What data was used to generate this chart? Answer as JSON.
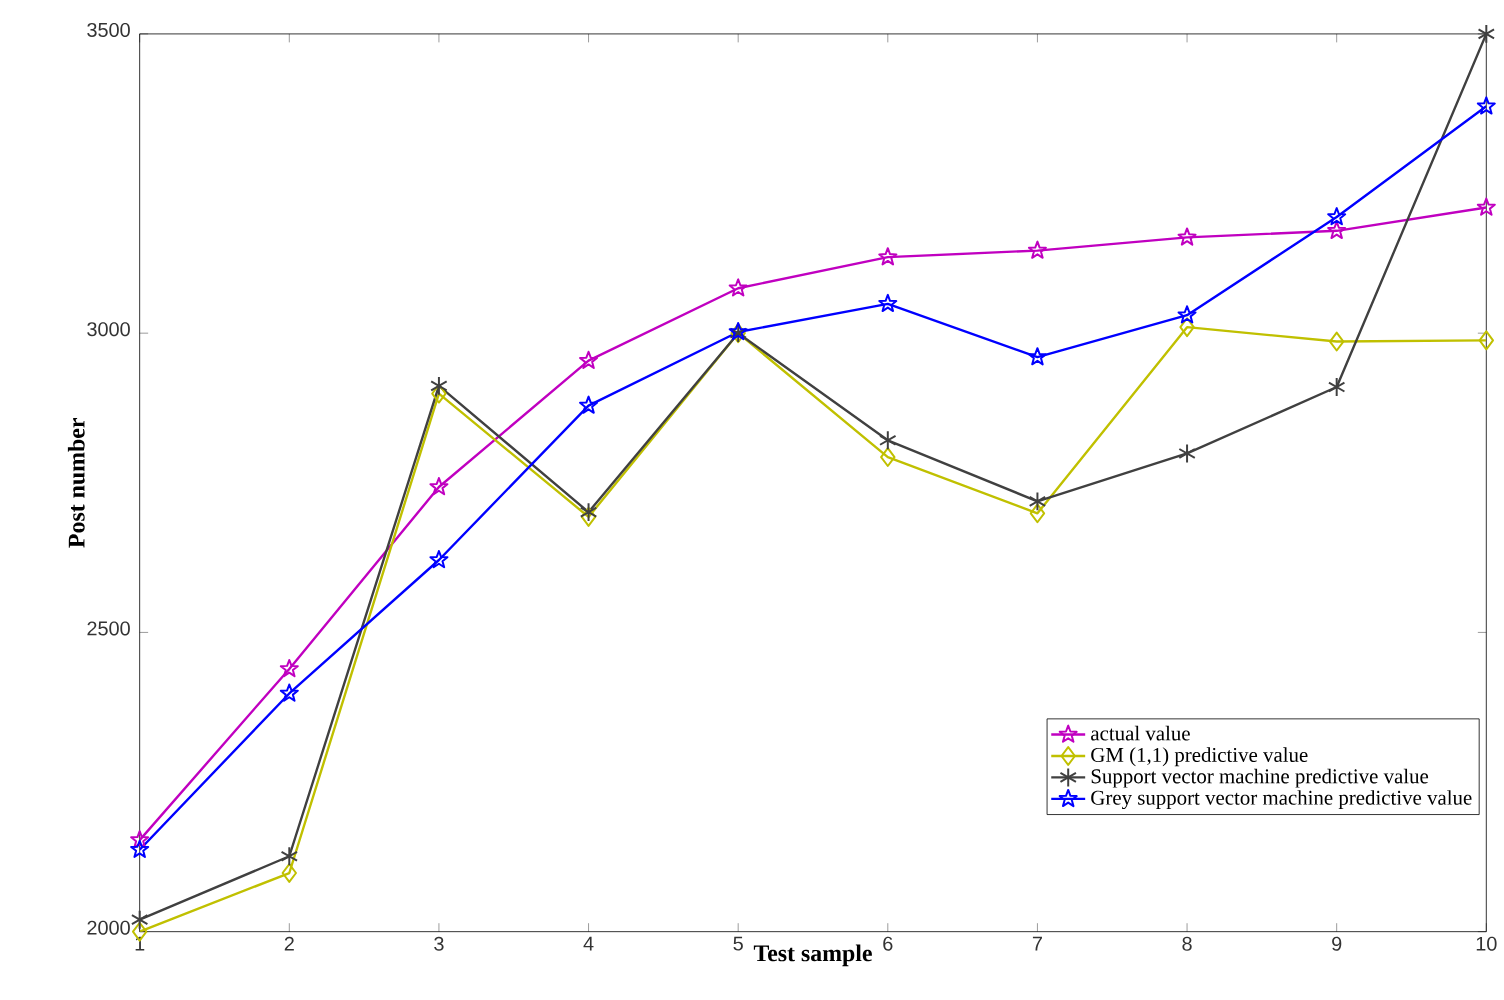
{
  "chart_data": {
    "type": "line",
    "xlabel": "Test sample",
    "ylabel": "Post number",
    "x": [
      1,
      2,
      3,
      4,
      5,
      6,
      7,
      8,
      9,
      10
    ],
    "xlim": [
      1,
      10
    ],
    "xticks": [
      1,
      2,
      3,
      4,
      5,
      6,
      7,
      8,
      9,
      10
    ],
    "ylim": [
      2000,
      3500
    ],
    "yticks": [
      2000,
      2500,
      3000,
      3500
    ],
    "grid": false,
    "legend": "bottom right",
    "line_style": "solid",
    "series": [
      {
        "name": "actual value",
        "color": "#c000c0",
        "marker": "star",
        "values": [
          2153,
          2439,
          2743,
          2954,
          3075,
          3127,
          3138,
          3160,
          3171,
          3210
        ]
      },
      {
        "name": "GM (1,1) predictive value",
        "color": "#c0c000",
        "marker": "diamond",
        "values": [
          2000,
          2098,
          2899,
          2693,
          3000,
          2793,
          2699,
          3010,
          2986,
          2988
        ]
      },
      {
        "name": "Support vector machine predictive value",
        "color": "#404040",
        "marker": "cross",
        "values": [
          2020,
          2126,
          2912,
          2701,
          3000,
          2821,
          2719,
          2799,
          2910,
          3500
        ]
      },
      {
        "name": "Grey support vector machine predictive value",
        "color": "#0000ff",
        "marker": "star",
        "values": [
          2137,
          2398,
          2621,
          2879,
          3002,
          3049,
          2960,
          3030,
          3194,
          3379
        ]
      }
    ]
  }
}
